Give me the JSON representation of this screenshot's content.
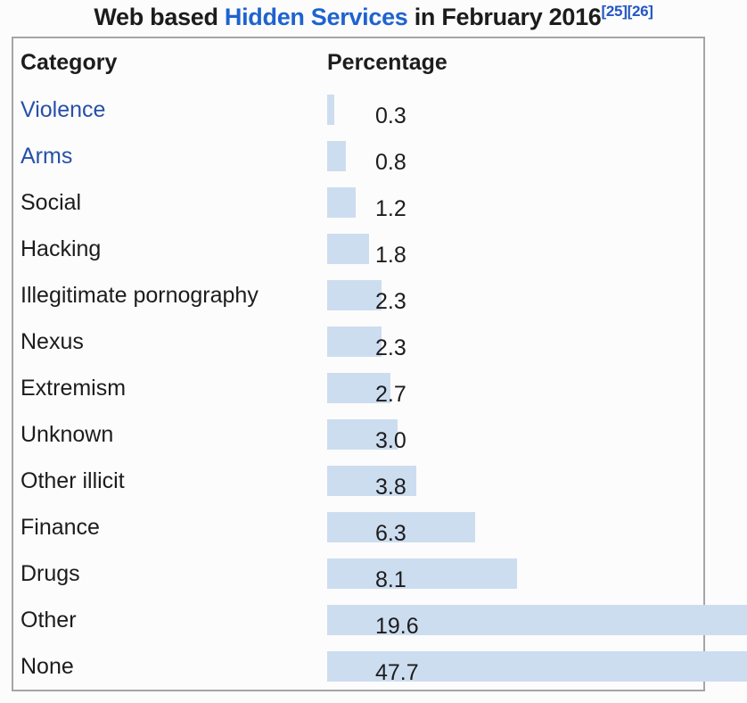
{
  "title": {
    "prefix": "Web based ",
    "link_text": "Hidden Services",
    "suffix": " in February 2016",
    "ref1": "[25]",
    "ref2": "[26]"
  },
  "table": {
    "header": {
      "category": "Category",
      "percentage": "Percentage"
    },
    "rows": [
      {
        "category": "Violence",
        "link": true,
        "value": 0.3,
        "label": "0.3"
      },
      {
        "category": "Arms",
        "link": true,
        "value": 0.8,
        "label": "0.8"
      },
      {
        "category": "Social",
        "link": false,
        "value": 1.2,
        "label": "1.2"
      },
      {
        "category": "Hacking",
        "link": false,
        "value": 1.8,
        "label": "1.8"
      },
      {
        "category": "Illegitimate pornography",
        "link": false,
        "value": 2.3,
        "label": "2.3"
      },
      {
        "category": "Nexus",
        "link": false,
        "value": 2.3,
        "label": "2.3"
      },
      {
        "category": "Extremism",
        "link": false,
        "value": 2.7,
        "label": "2.7"
      },
      {
        "category": "Unknown",
        "link": false,
        "value": 3.0,
        "label": "3.0"
      },
      {
        "category": "Other illicit",
        "link": false,
        "value": 3.8,
        "label": "3.8"
      },
      {
        "category": "Finance",
        "link": false,
        "value": 6.3,
        "label": "6.3"
      },
      {
        "category": "Drugs",
        "link": false,
        "value": 8.1,
        "label": "8.1"
      },
      {
        "category": "Other",
        "link": false,
        "value": 19.6,
        "label": "19.6"
      },
      {
        "category": "None",
        "link": false,
        "value": 47.7,
        "label": "47.7"
      }
    ]
  },
  "chart_data": {
    "type": "bar",
    "orientation": "horizontal",
    "title": "Web based Hidden Services in February 2016",
    "references": [
      "[25]",
      "[26]"
    ],
    "columns": [
      "Category",
      "Percentage"
    ],
    "categories": [
      "Violence",
      "Arms",
      "Social",
      "Hacking",
      "Illegitimate pornography",
      "Nexus",
      "Extremism",
      "Unknown",
      "Other illicit",
      "Finance",
      "Drugs",
      "Other",
      "None"
    ],
    "values": [
      0.3,
      0.8,
      1.2,
      1.8,
      2.3,
      2.3,
      2.7,
      3.0,
      3.8,
      6.3,
      8.1,
      19.6,
      47.7
    ],
    "unit": "%",
    "xlim": [
      0,
      18
    ],
    "grid": false,
    "legend": false,
    "note": "bars for Other (19.6) and None (47.7) overflow the table and are clipped at the image edge"
  },
  "colors": {
    "bar_fill": "#cdddf0",
    "table_border": "#a5a5a5",
    "text": "#1c1c1c",
    "category_link": "#2750a8",
    "title_link": "#1e63cf",
    "reference_link": "#2456c4",
    "background": "#fcfcfc"
  }
}
